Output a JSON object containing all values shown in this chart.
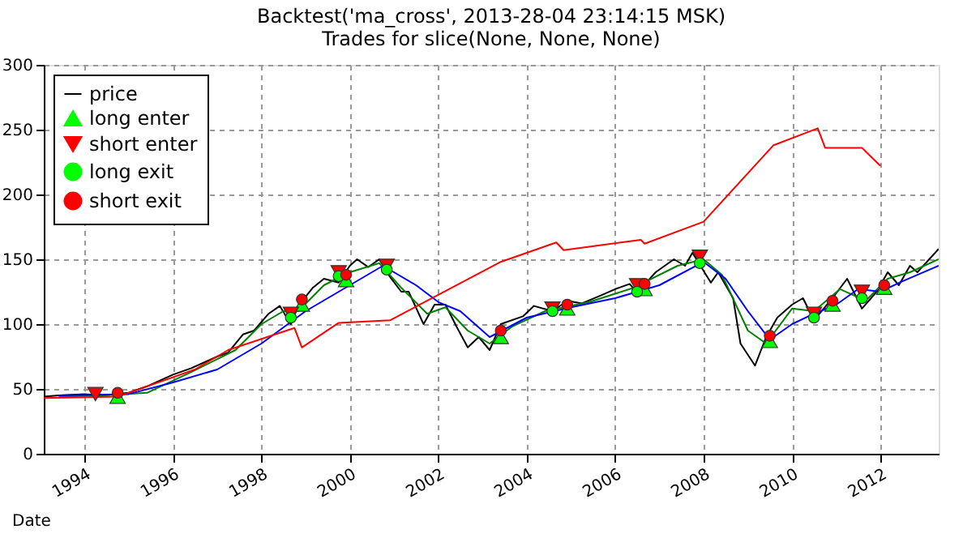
{
  "chart_data": {
    "type": "line",
    "title": "Backtest('ma_cross', 2013-28-04 23:14:15 MSK)",
    "subtitle": "Trades for slice(None, None, None)",
    "xlabel": "Date",
    "xlim": [
      "1993-01-29",
      "2013-04-26"
    ],
    "xticks": [
      {
        "value": "1994",
        "label": "1994"
      },
      {
        "value": "1996",
        "label": "1996"
      },
      {
        "value": "1998",
        "label": "1998"
      },
      {
        "value": "2000",
        "label": "2000"
      },
      {
        "value": "2002",
        "label": "2002"
      },
      {
        "value": "2004",
        "label": "2004"
      },
      {
        "value": "2006",
        "label": "2006"
      },
      {
        "value": "2008",
        "label": "2008"
      },
      {
        "value": "2010",
        "label": "2010"
      },
      {
        "value": "2012",
        "label": "2012"
      }
    ],
    "ylim": [
      0,
      300
    ],
    "yticks": [
      0,
      50,
      100,
      150,
      200,
      250,
      300
    ],
    "grid": true,
    "legend": "top left",
    "line_style": "solid",
    "marker": "none",
    "series": [
      {
        "name": "price",
        "type": "line",
        "color": "#000000",
        "x": [
          "1993-01-29",
          "1993-06",
          "1994-01",
          "1994-06",
          "1995-01",
          "1995-06",
          "1996-01",
          "1996-06",
          "1997-01",
          "1997-04",
          "1997-08",
          "1997-11",
          "1998-03",
          "1998-06",
          "1998-09",
          "1998-11",
          "1999-03",
          "1999-06",
          "1999-10",
          "2000-01",
          "2000-03",
          "2000-06",
          "2000-09",
          "2000-12",
          "2001-03",
          "2001-05",
          "2001-09",
          "2001-12",
          "2002-03",
          "2002-06",
          "2002-09",
          "2002-12",
          "2003-03",
          "2003-06",
          "2003-12",
          "2004-03",
          "2004-08",
          "2004-12",
          "2005-04",
          "2005-09",
          "2006-01",
          "2006-05",
          "2006-07",
          "2006-12",
          "2007-05",
          "2007-08",
          "2007-10",
          "2008-03",
          "2008-05",
          "2008-09",
          "2008-11",
          "2009-03",
          "2009-06",
          "2009-09",
          "2010-01",
          "2010-04",
          "2010-07",
          "2010-12",
          "2011-04",
          "2011-08",
          "2011-12",
          "2012-03",
          "2012-06",
          "2012-09",
          "2012-11",
          "2013-04-26"
        ],
        "values": [
          44,
          45,
          46,
          45,
          47,
          52,
          61,
          66,
          75,
          78,
          92,
          95,
          108,
          114,
          100,
          114,
          128,
          135,
          132,
          145,
          150,
          144,
          150,
          136,
          125,
          125,
          100,
          115,
          115,
          98,
          82,
          90,
          80,
          100,
          106,
          114,
          110,
          118,
          116,
          122,
          127,
          131,
          124,
          140,
          150,
          145,
          155,
          132,
          140,
          120,
          85,
          68,
          90,
          105,
          115,
          120,
          103,
          120,
          135,
          112,
          125,
          140,
          130,
          145,
          140,
          158
        ]
      },
      {
        "type": "line",
        "color": "#008000",
        "x": [
          "1993-06",
          "1994-06",
          "1995-06",
          "1996-06",
          "1997-06",
          "1998-01",
          "1998-07",
          "1998-11",
          "1999-06",
          "2000-01",
          "2000-09",
          "2001-03",
          "2001-10",
          "2002-03",
          "2002-09",
          "2003-03",
          "2003-09",
          "2004-06",
          "2005-06",
          "2006-06",
          "2007-06",
          "2008-01",
          "2008-06",
          "2009-01",
          "2009-06",
          "2010-01",
          "2010-07",
          "2011-02",
          "2011-09",
          "2012-03",
          "2012-09",
          "2013-04-26"
        ],
        "values": [
          44,
          45,
          47,
          63,
          80,
          100,
          110,
          110,
          130,
          140,
          147,
          128,
          108,
          113,
          95,
          85,
          98,
          110,
          117,
          128,
          145,
          150,
          138,
          95,
          85,
          112,
          110,
          127,
          118,
          135,
          140,
          150
        ]
      },
      {
        "type": "line",
        "color": "#0000ff",
        "x": [
          "1993-06",
          "1995-01",
          "1996-01",
          "1997-01",
          "1998-01",
          "1999-01",
          "2000-01",
          "2000-10",
          "2001-07",
          "2002-01",
          "2002-07",
          "2003-03",
          "2004-01",
          "2005-01",
          "2006-01",
          "2007-01",
          "2008-01",
          "2008-07",
          "2009-01",
          "2009-07",
          "2010-01",
          "2010-07",
          "2011-01",
          "2011-07",
          "2012-01",
          "2012-07",
          "2013-04-26"
        ],
        "values": [
          45,
          46,
          55,
          65,
          85,
          110,
          130,
          145,
          130,
          117,
          110,
          90,
          105,
          113,
          120,
          130,
          148,
          135,
          110,
          88,
          100,
          108,
          115,
          127,
          125,
          133,
          145
        ]
      },
      {
        "type": "line",
        "color": "#ff0000",
        "x": [
          "1993-01-29",
          "1994-10",
          "1996-07",
          "1997-04",
          "1998-10",
          "1998-12",
          "1999-10",
          "2000-12",
          "2003-06",
          "2004-09",
          "2004-11",
          "2006-08",
          "2006-09",
          "2008-01",
          "2009-08",
          "2010-08",
          "2010-10",
          "2011-08",
          "2012-01"
        ],
        "values": [
          43,
          44,
          65,
          80,
          97,
          82,
          101,
          103,
          148,
          163,
          157,
          165,
          162,
          179,
          238,
          251,
          236,
          236,
          222
        ]
      },
      {
        "name": "long enter",
        "type": "scatter",
        "marker": "triangle",
        "color": "#00ff00",
        "x": [
          "1994-10",
          "1998-12",
          "1999-12",
          "2003-06",
          "2004-12",
          "2006-09",
          "2009-07",
          "2010-12",
          "2012-02"
        ],
        "values": [
          44,
          115,
          134,
          90,
          112,
          127,
          87,
          115,
          128
        ]
      },
      {
        "name": "short enter",
        "type": "scatter",
        "marker": "triangle-down",
        "color": "#ff0000",
        "x": [
          "1994-04",
          "1998-09",
          "1999-10",
          "2000-11",
          "2004-08",
          "2006-07",
          "2007-12",
          "2010-07",
          "2011-08"
        ],
        "values": [
          46,
          108,
          140,
          145,
          112,
          130,
          152,
          108,
          125
        ]
      },
      {
        "name": "long exit",
        "type": "scatter",
        "marker": "circle",
        "color": "#00ff00",
        "x": [
          "1998-09",
          "1999-10",
          "2000-11",
          "2004-08",
          "2006-07",
          "2007-12",
          "2010-07",
          "2011-08"
        ],
        "values": [
          105,
          137,
          142,
          110,
          125,
          147,
          105,
          120
        ]
      },
      {
        "name": "short exit",
        "type": "scatter",
        "marker": "circle",
        "color": "#ff0000",
        "x": [
          "1994-10",
          "1998-12",
          "1999-12",
          "2003-06",
          "2004-12",
          "2006-09",
          "2009-07",
          "2010-12",
          "2012-02"
        ],
        "values": [
          47,
          119,
          138,
          95,
          115,
          131,
          91,
          118,
          130
        ]
      }
    ]
  }
}
